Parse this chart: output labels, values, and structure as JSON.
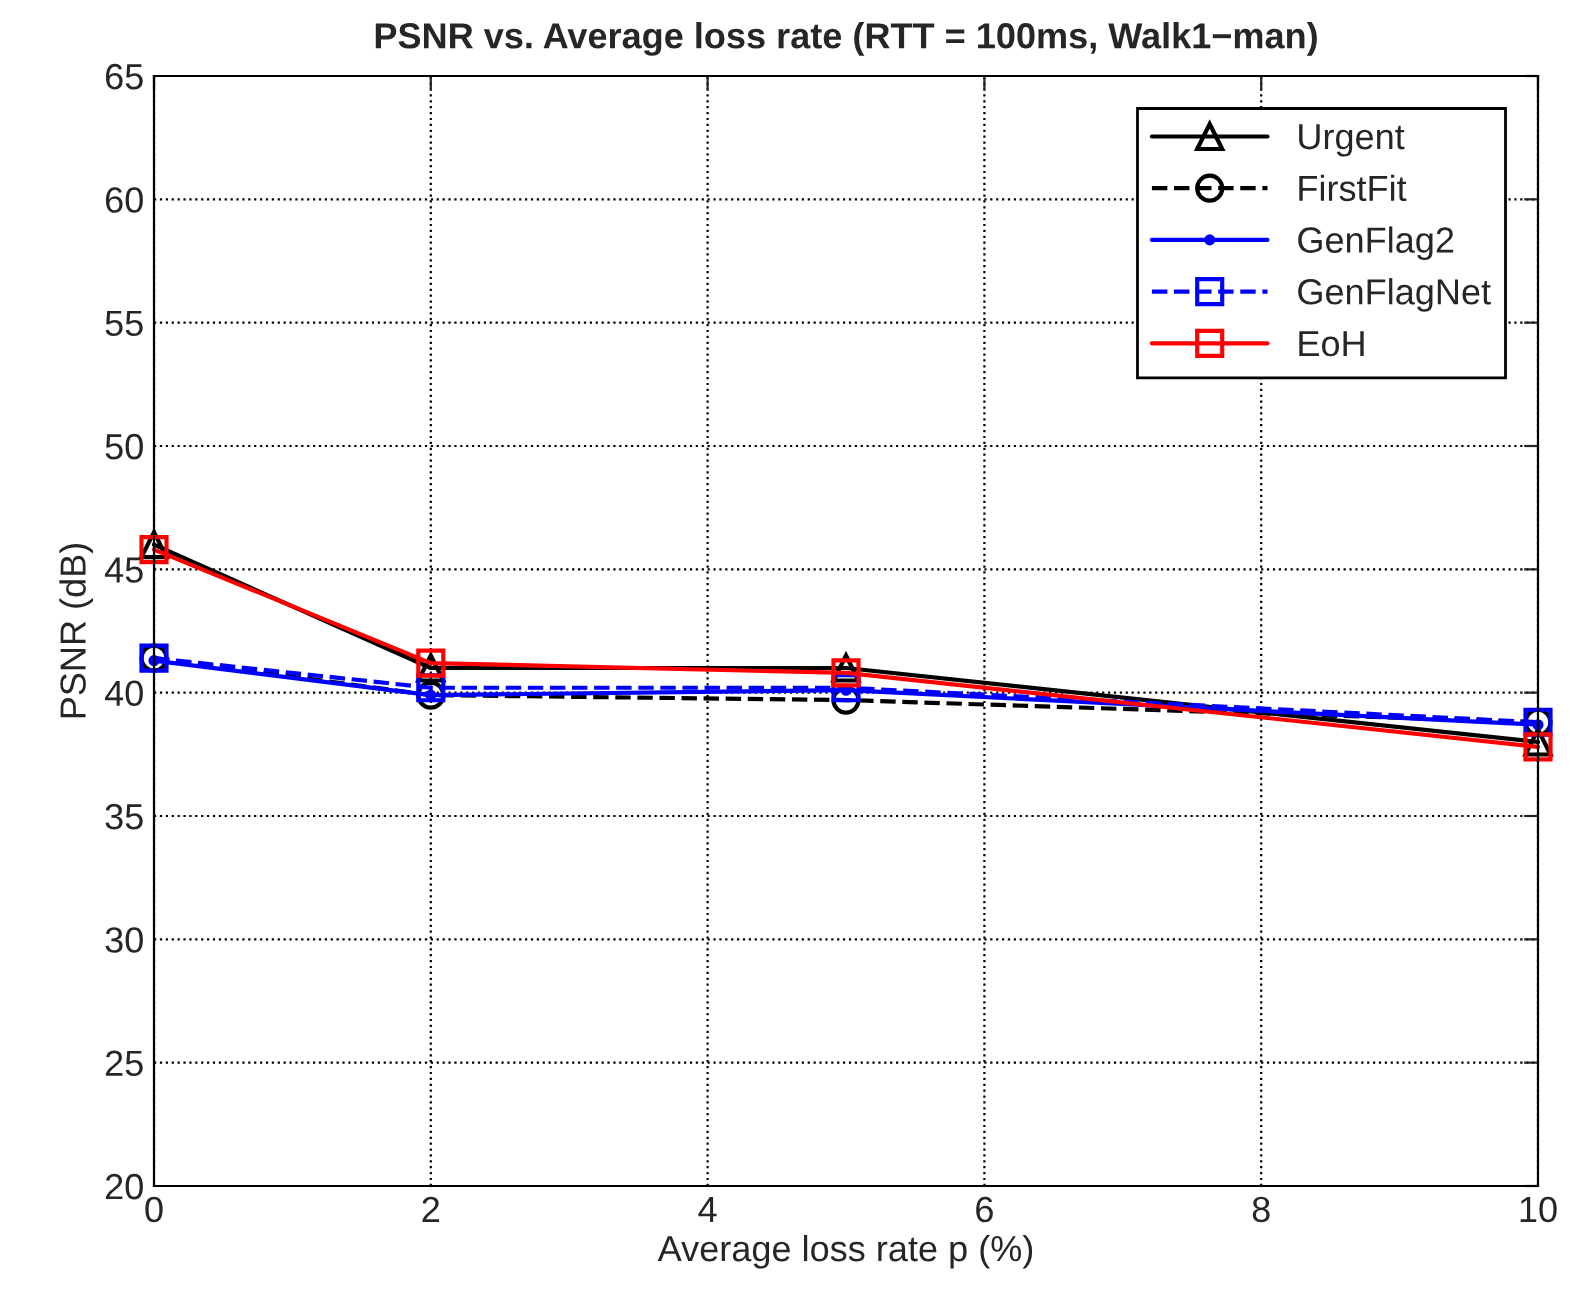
{
  "chart_data": {
    "type": "line",
    "title": "PSNR vs. Average loss rate (RTT = 100ms, Walk1−man)",
    "xlabel": "Average loss rate p (%)",
    "ylabel": "PSNR (dB)",
    "x": [
      0,
      2,
      5,
      10
    ],
    "series": [
      {
        "name": "Urgent",
        "color": "#000000",
        "marker": "triangle",
        "line_style": "solid",
        "values": [
          46.0,
          41.0,
          41.0,
          38.0
        ]
      },
      {
        "name": "FirstFit",
        "color": "#000000",
        "marker": "circle",
        "line_style": "dashed",
        "values": [
          41.4,
          39.9,
          39.7,
          38.8
        ]
      },
      {
        "name": "GenFlag2",
        "color": "#0000ff",
        "marker": "point",
        "line_style": "solid",
        "values": [
          41.3,
          39.9,
          40.1,
          38.7
        ]
      },
      {
        "name": "GenFlagNet",
        "color": "#0000ff",
        "marker": "square",
        "line_style": "dashed",
        "values": [
          41.4,
          40.2,
          40.2,
          38.8
        ]
      },
      {
        "name": "EoH",
        "color": "#ff0000",
        "marker": "square",
        "line_style": "solid",
        "values": [
          45.8,
          41.2,
          40.8,
          37.8
        ]
      }
    ],
    "xlim": [
      0,
      10
    ],
    "xticks": [
      0,
      2,
      4,
      6,
      8,
      10
    ],
    "ylim": [
      20,
      65
    ],
    "yticks": [
      20,
      25,
      30,
      35,
      40,
      45,
      50,
      55,
      60,
      65
    ],
    "grid": true,
    "legend": "top right"
  }
}
